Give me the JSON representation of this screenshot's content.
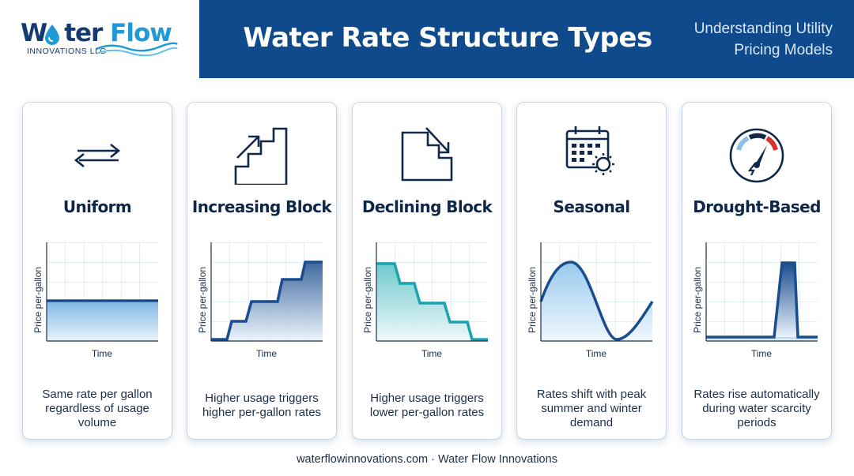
{
  "brand": {
    "name_part1": "W",
    "name_part2": "ter",
    "name_part3": "Flow",
    "sub": "INNOVATIONS LLC"
  },
  "header": {
    "title": "Water Rate Structure Types",
    "subtitle_line1": "Understanding Utility",
    "subtitle_line2": "Pricing Models"
  },
  "cards": [
    {
      "title": "Uniform",
      "icon": "double-arrow-icon",
      "ylabel": "Price per-gallon",
      "xlabel": "Time",
      "desc": "Same rate per gallon regardless of usage volume"
    },
    {
      "title": "Increasing Block",
      "icon": "stairs-up-icon",
      "ylabel": "Price per-gallon",
      "xlabel": "Time",
      "desc": "Higher usage triggers higher per-gallon rates"
    },
    {
      "title": "Declining Block",
      "icon": "stairs-down-icon",
      "ylabel": "Price per-gallon",
      "xlabel": "Time",
      "desc": "Higher usage triggers lower per-gallon rates"
    },
    {
      "title": "Seasonal",
      "icon": "calendar-sun-icon",
      "ylabel": "Price per-gallon",
      "xlabel": "Time",
      "desc": "Rates shift with peak summer and winter demand"
    },
    {
      "title": "Drought-Based",
      "icon": "gauge-icon",
      "ylabel": "Price per-gallon",
      "xlabel": "Time",
      "desc": "Rates rise automatically during water scarcity periods"
    }
  ],
  "footer": {
    "text": "waterflowinnovations.com · Water Flow Innovations"
  },
  "colors": {
    "navy": "#0f4a8c",
    "accent": "#1f9ad6",
    "teal": "#1ba3b0",
    "danger": "#d9322b"
  }
}
